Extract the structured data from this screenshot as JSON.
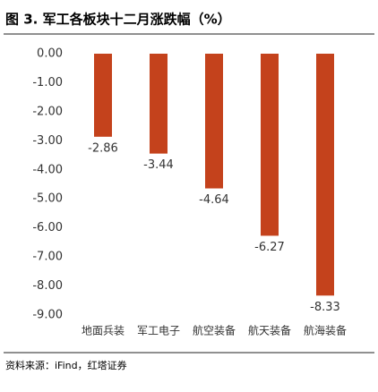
{
  "chart_data": {
    "type": "bar",
    "title": "图 3. 军工各板块十二月涨跌幅（%）",
    "categories": [
      "地面兵装",
      "军工电子",
      "航空装备",
      "航天装备",
      "航海装备"
    ],
    "values": [
      -2.86,
      -3.44,
      -4.64,
      -6.27,
      -8.33
    ],
    "color": "#c4421c",
    "ylim": [
      -9,
      0
    ],
    "yticks": [
      {
        "value": 0,
        "label": "0.00"
      },
      {
        "value": -1,
        "label": "-1.00"
      },
      {
        "value": -2,
        "label": "-2.00"
      },
      {
        "value": -3,
        "label": "-3.00"
      },
      {
        "value": -4,
        "label": "-4.00"
      },
      {
        "value": -5,
        "label": "-5.00"
      },
      {
        "value": -6,
        "label": "-6.00"
      },
      {
        "value": -7,
        "label": "-7.00"
      },
      {
        "value": -8,
        "label": "-8.00"
      },
      {
        "value": -9,
        "label": "-9.00"
      }
    ],
    "grid": false,
    "source": "资料来源：iFind，红塔证券"
  }
}
